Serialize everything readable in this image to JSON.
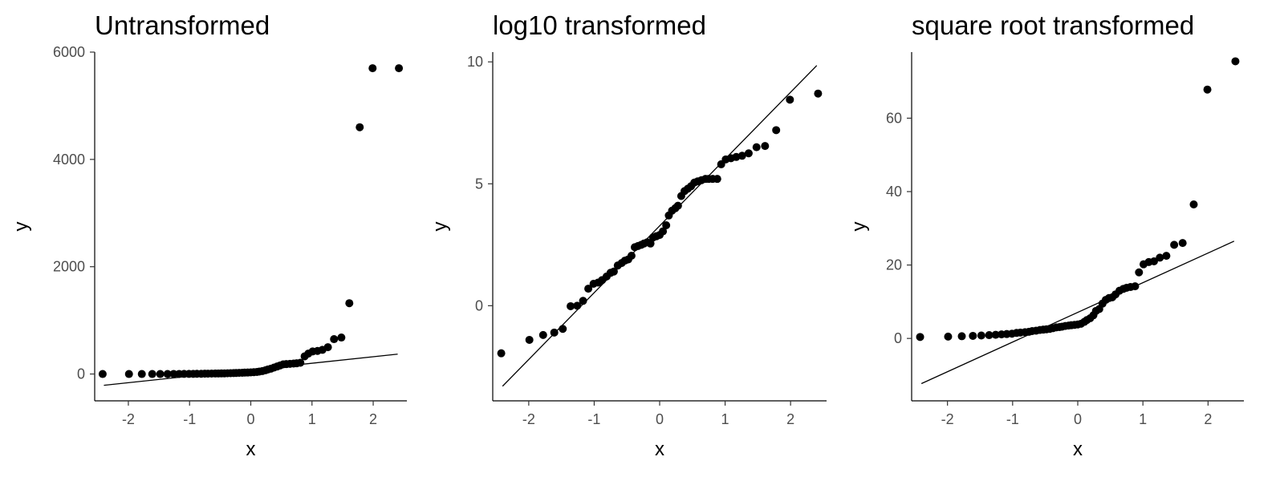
{
  "chart_data": [
    {
      "type": "scatter",
      "title": "Untransformed",
      "xlabel": "x",
      "ylabel": "y",
      "xlim": [
        -2.55,
        2.55
      ],
      "ylim": [
        -500,
        6000
      ],
      "xticks": [
        -2,
        -1,
        0,
        1,
        2
      ],
      "yticks": [
        0,
        2000,
        4000,
        6000
      ],
      "reference_line": {
        "x": [
          -2.4,
          2.4
        ],
        "y": [
          -210,
          370
        ]
      },
      "x": [
        -2.42,
        -1.99,
        -1.78,
        -1.61,
        -1.48,
        -1.36,
        -1.26,
        -1.17,
        -1.09,
        -1.01,
        -0.94,
        -0.88,
        -0.81,
        -0.75,
        -0.7,
        -0.64,
        -0.58,
        -0.53,
        -0.48,
        -0.43,
        -0.38,
        -0.33,
        -0.28,
        -0.24,
        -0.19,
        -0.14,
        -0.1,
        -0.05,
        0.0,
        0.05,
        0.1,
        0.14,
        0.19,
        0.24,
        0.28,
        0.33,
        0.38,
        0.43,
        0.48,
        0.53,
        0.58,
        0.64,
        0.7,
        0.75,
        0.81,
        0.88,
        0.94,
        1.01,
        1.09,
        1.17,
        1.26,
        1.36,
        1.48,
        1.61,
        1.78,
        1.99,
        2.42
      ],
      "y": [
        0,
        0,
        0,
        0,
        0,
        0,
        1,
        1,
        2,
        2,
        3,
        4,
        5,
        6,
        7,
        8,
        9,
        10,
        11,
        12,
        14,
        15,
        17,
        19,
        21,
        23,
        26,
        28,
        31,
        34,
        38,
        45,
        55,
        70,
        85,
        100,
        120,
        140,
        160,
        180,
        185,
        190,
        195,
        200,
        210,
        330,
        380,
        420,
        430,
        450,
        500,
        650,
        680,
        1320,
        4600,
        5700,
        5700
      ]
    },
    {
      "type": "scatter",
      "title": "log10 transformed",
      "xlabel": "x",
      "ylabel": "y",
      "xlim": [
        -2.55,
        2.55
      ],
      "ylim": [
        -3.9,
        10.4
      ],
      "xticks": [
        -2,
        -1,
        0,
        1,
        2
      ],
      "yticks": [
        0,
        5,
        10
      ],
      "reference_line": {
        "x": [
          -2.4,
          2.4
        ],
        "y": [
          -3.3,
          9.85
        ]
      },
      "x": [
        -2.42,
        -1.99,
        -1.78,
        -1.61,
        -1.48,
        -1.36,
        -1.26,
        -1.17,
        -1.09,
        -1.01,
        -0.94,
        -0.88,
        -0.81,
        -0.75,
        -0.7,
        -0.64,
        -0.58,
        -0.53,
        -0.48,
        -0.43,
        -0.38,
        -0.33,
        -0.28,
        -0.24,
        -0.19,
        -0.14,
        -0.1,
        -0.05,
        0.0,
        0.05,
        0.1,
        0.14,
        0.19,
        0.24,
        0.28,
        0.33,
        0.38,
        0.43,
        0.48,
        0.53,
        0.58,
        0.64,
        0.7,
        0.75,
        0.81,
        0.88,
        0.94,
        1.01,
        1.09,
        1.17,
        1.26,
        1.36,
        1.48,
        1.61,
        1.78,
        1.99,
        2.42
      ],
      "y": [
        -1.95,
        -1.4,
        -1.2,
        -1.1,
        -0.95,
        -0.02,
        0.0,
        0.2,
        0.7,
        0.9,
        0.95,
        1.05,
        1.2,
        1.35,
        1.4,
        1.65,
        1.75,
        1.85,
        1.9,
        2.05,
        2.4,
        2.45,
        2.5,
        2.55,
        2.6,
        2.55,
        2.8,
        2.85,
        2.9,
        3.05,
        3.3,
        3.7,
        3.9,
        4.0,
        4.1,
        4.5,
        4.7,
        4.8,
        4.9,
        5.05,
        5.1,
        5.15,
        5.2,
        5.2,
        5.2,
        5.2,
        5.8,
        6.0,
        6.05,
        6.1,
        6.15,
        6.25,
        6.5,
        6.55,
        7.2,
        8.45,
        8.7
      ]
    },
    {
      "type": "scatter",
      "title": "square root transformed",
      "xlabel": "x",
      "ylabel": "y",
      "xlim": [
        -2.55,
        2.55
      ],
      "ylim": [
        -17,
        78
      ],
      "xticks": [
        -2,
        -1,
        0,
        1,
        2
      ],
      "yticks": [
        0,
        20,
        40,
        60
      ],
      "reference_line": {
        "x": [
          -2.4,
          2.4
        ],
        "y": [
          -12.3,
          26.5
        ]
      },
      "x": [
        -2.42,
        -1.99,
        -1.78,
        -1.61,
        -1.48,
        -1.36,
        -1.26,
        -1.17,
        -1.09,
        -1.01,
        -0.94,
        -0.88,
        -0.81,
        -0.75,
        -0.7,
        -0.64,
        -0.58,
        -0.53,
        -0.48,
        -0.43,
        -0.38,
        -0.33,
        -0.28,
        -0.24,
        -0.19,
        -0.14,
        -0.1,
        -0.05,
        0.0,
        0.05,
        0.1,
        0.14,
        0.19,
        0.24,
        0.28,
        0.33,
        0.38,
        0.43,
        0.48,
        0.53,
        0.58,
        0.64,
        0.7,
        0.75,
        0.81,
        0.88,
        0.94,
        1.01,
        1.09,
        1.17,
        1.26,
        1.36,
        1.48,
        1.61,
        1.78,
        1.99,
        2.42
      ],
      "y": [
        0.4,
        0.5,
        0.6,
        0.7,
        0.8,
        0.9,
        1.0,
        1.1,
        1.2,
        1.3,
        1.5,
        1.6,
        1.7,
        1.8,
        2.0,
        2.1,
        2.3,
        2.4,
        2.5,
        2.6,
        2.8,
        3.0,
        3.1,
        3.2,
        3.4,
        3.5,
        3.6,
        3.7,
        3.8,
        4.0,
        4.5,
        5.0,
        5.5,
        6.3,
        7.5,
        8.0,
        9.5,
        10.5,
        11.0,
        11.2,
        12.0,
        13.0,
        13.5,
        13.8,
        14.0,
        14.2,
        18.0,
        20.2,
        20.8,
        21.0,
        22.0,
        22.5,
        25.5,
        26.0,
        36.5,
        67.8,
        75.5
      ]
    }
  ]
}
